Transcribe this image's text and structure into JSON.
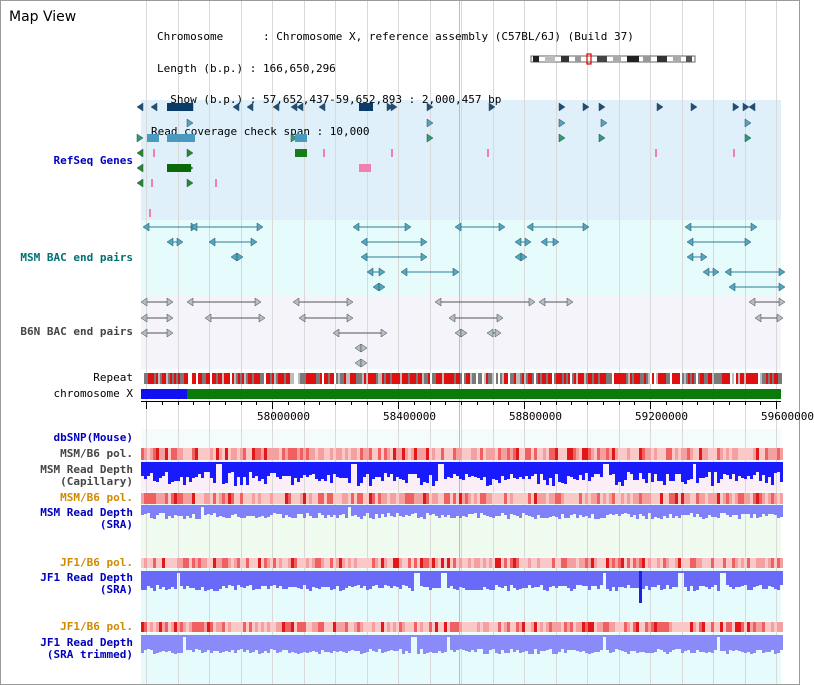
{
  "header": {
    "title": "Map View",
    "info_lines": [
      "Chromosome      : Chromosome X, reference assembly (C57BL/6J) (Build 37)",
      "Length (b.p.) : 166,650,296",
      "  Show (b.p.) : 57,652,437-59,652,893 : 2,000,457 bp",
      "Read coverage check span : 10,000"
    ]
  },
  "tracks": {
    "refseq": "RefSeq Genes",
    "msm_bac": "MSM BAC end pairs",
    "b6n_bac": "B6N BAC end pairs",
    "repeat": "Repeat",
    "chromosome": "chromosome X",
    "dbsnp": "dbSNP(Mouse)",
    "msm_pol_1": "MSM/B6 pol.",
    "msm_depth_cap_1": "MSM Read Depth",
    "msm_depth_cap_2": "(Capillary)",
    "msm_pol_2": "MSM/B6 pol.",
    "msm_depth_sra_1": "MSM Read Depth",
    "msm_depth_sra_2": "(SRA)",
    "jf1_pol_1": "JF1/B6 pol.",
    "jf1_depth_1": "JF1 Read Depth",
    "jf1_depth_2": "(SRA)",
    "jf1_pol_2": "JF1/B6 pol.",
    "jf1_trim_1": "JF1 Read Depth",
    "jf1_trim_2": "(SRA trimmed)"
  },
  "axis": {
    "ticks": [
      "58000000",
      "58400000",
      "58800000",
      "59200000",
      "59600000"
    ]
  },
  "colors": {
    "refseq_bg": "#dff0fa",
    "msm_bac_bg": "#e6fbfb",
    "b6n_bac_bg": "#f5f5fb",
    "depth_blue": "#1a1aff",
    "depth_light": "#7a7aff",
    "label_blue": "#0000c0",
    "label_orange": "#d08a00",
    "label_teal": "#007070"
  }
}
